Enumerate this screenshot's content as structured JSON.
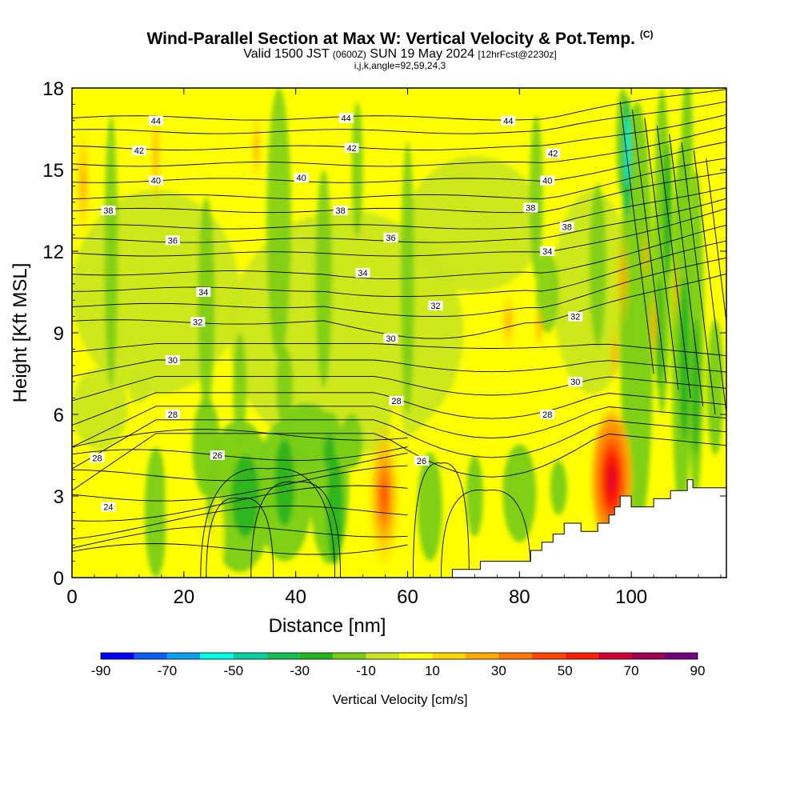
{
  "title": {
    "main": "Wind-Parallel Section at Max W: Vertical Velocity & Pot.Temp.",
    "copyright": "(C)",
    "valid_prefix": "Valid 1500 JST",
    "utc": "(0600Z)",
    "valid_date": "SUN 19 May 2024",
    "forecast": "[12hrFcst@2230z]",
    "indices": "i,j,k,angle=92,59,24,3"
  },
  "chart_data": {
    "type": "heatmap",
    "xlabel": "Distance [nm]",
    "ylabel": "Height [Kft MSL]",
    "xlim": [
      0,
      117
    ],
    "ylim": [
      0,
      18
    ],
    "x_ticks": [
      "0",
      "20",
      "40",
      "60",
      "80",
      "100"
    ],
    "x_tick_values": [
      0,
      20,
      40,
      60,
      80,
      100
    ],
    "y_ticks": [
      "0",
      "3",
      "6",
      "9",
      "12",
      "15",
      "18"
    ],
    "y_tick_values": [
      0,
      3,
      6,
      9,
      12,
      15,
      18
    ],
    "colorbar": {
      "label": "Vertical Velocity [cm/s]",
      "tick_labels": [
        "-90",
        "-70",
        "-50",
        "-30",
        "-10",
        "10",
        "30",
        "50",
        "70",
        "90"
      ],
      "levels": [
        -90,
        -80,
        -70,
        -60,
        -50,
        -40,
        -30,
        -20,
        -10,
        0,
        10,
        20,
        30,
        40,
        50,
        60,
        70,
        80,
        90
      ],
      "colors": [
        "#0000ff",
        "#0a5ef5",
        "#0aa0f0",
        "#00ffe6",
        "#00d2a0",
        "#14be50",
        "#28b41e",
        "#78cd14",
        "#c8e61e",
        "#ffff00",
        "#ffd700",
        "#ffaa00",
        "#ff7800",
        "#ff4600",
        "#ff1e00",
        "#d20032",
        "#a00050",
        "#780082"
      ]
    },
    "contour_series": {
      "name": "Pot.Temp.",
      "line_labels": [
        {
          "value": "44",
          "x": 15,
          "y": 16.8
        },
        {
          "value": "44",
          "x": 49,
          "y": 16.9
        },
        {
          "value": "44",
          "x": 78,
          "y": 16.8
        },
        {
          "value": "42",
          "x": 12,
          "y": 15.7
        },
        {
          "value": "42",
          "x": 50,
          "y": 15.8
        },
        {
          "value": "42",
          "x": 86,
          "y": 15.6
        },
        {
          "value": "40",
          "x": 15,
          "y": 14.6
        },
        {
          "value": "40",
          "x": 41,
          "y": 14.7
        },
        {
          "value": "40",
          "x": 85,
          "y": 14.6
        },
        {
          "value": "38",
          "x": 6.5,
          "y": 13.5
        },
        {
          "value": "38",
          "x": 48,
          "y": 13.5
        },
        {
          "value": "38",
          "x": 82,
          "y": 13.6
        },
        {
          "value": "38",
          "x": 88.5,
          "y": 12.9
        },
        {
          "value": "36",
          "x": 18,
          "y": 12.4
        },
        {
          "value": "36",
          "x": 57,
          "y": 12.5
        },
        {
          "value": "34",
          "x": 85,
          "y": 12.0
        },
        {
          "value": "34",
          "x": 52,
          "y": 11.2
        },
        {
          "value": "34",
          "x": 23.5,
          "y": 10.5
        },
        {
          "value": "32",
          "x": 65,
          "y": 10.0
        },
        {
          "value": "32",
          "x": 22.5,
          "y": 9.4
        },
        {
          "value": "32",
          "x": 90,
          "y": 9.6
        },
        {
          "value": "30",
          "x": 57,
          "y": 8.8
        },
        {
          "value": "30",
          "x": 18,
          "y": 8.0
        },
        {
          "value": "30",
          "x": 90,
          "y": 7.2
        },
        {
          "value": "28",
          "x": 58,
          "y": 6.5
        },
        {
          "value": "28",
          "x": 18,
          "y": 6.0
        },
        {
          "value": "28",
          "x": 85,
          "y": 6.0
        },
        {
          "value": "28",
          "x": 4.5,
          "y": 4.4
        },
        {
          "value": "26",
          "x": 26,
          "y": 4.5
        },
        {
          "value": "26",
          "x": 62.5,
          "y": 4.3
        },
        {
          "value": "24",
          "x": 6.5,
          "y": 2.6
        }
      ]
    },
    "terrain": {
      "x": [
        0,
        68,
        68,
        73,
        73,
        82,
        82,
        84,
        84,
        86,
        86,
        88,
        88,
        91,
        91,
        94,
        94,
        96,
        96,
        97,
        97,
        98,
        98,
        100,
        100,
        104,
        104,
        107,
        107,
        110,
        110,
        111,
        111,
        117
      ],
      "y": [
        0,
        0,
        0.3,
        0.3,
        0.6,
        0.6,
        1.0,
        1.0,
        1.3,
        1.3,
        1.6,
        1.6,
        2.0,
        2.0,
        1.7,
        1.7,
        2.0,
        2.0,
        2.3,
        2.3,
        2.6,
        2.6,
        3.0,
        3.0,
        2.6,
        2.6,
        2.9,
        2.9,
        3.2,
        3.2,
        3.6,
        3.6,
        3.3,
        3.3
      ]
    }
  }
}
